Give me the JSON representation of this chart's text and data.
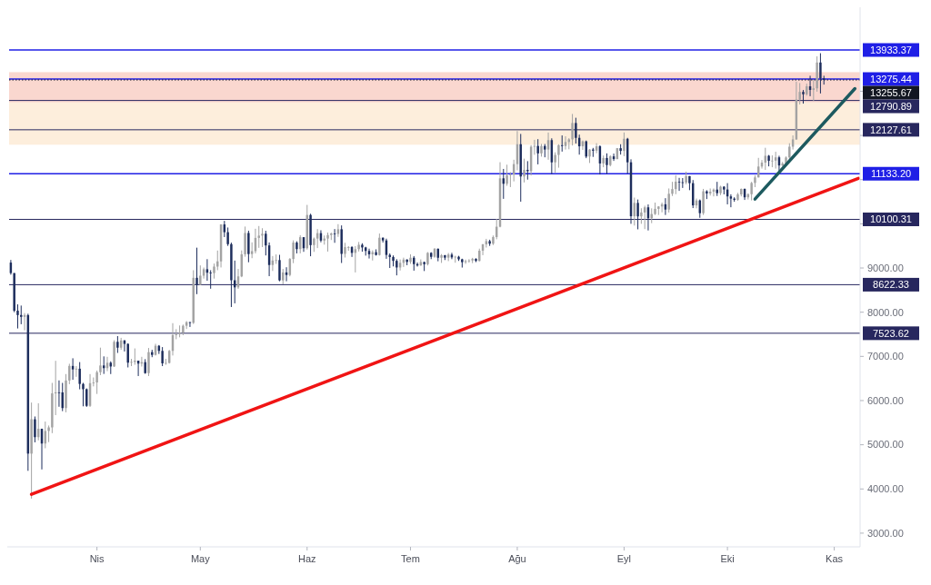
{
  "chart_data": {
    "type": "candlestick",
    "categories": [
      null,
      null,
      null,
      null,
      null,
      null,
      null,
      null,
      null,
      null,
      null,
      null,
      null,
      null,
      null,
      null,
      null,
      null,
      null,
      null,
      null,
      null,
      null,
      null,
      null,
      "Nis",
      null,
      null,
      null,
      null,
      null,
      null,
      null,
      null,
      null,
      null,
      null,
      null,
      null,
      null,
      null,
      null,
      null,
      null,
      null,
      null,
      null,
      null,
      null,
      null,
      null,
      null,
      null,
      null,
      null,
      "May",
      null,
      null,
      null,
      null,
      null,
      null,
      null,
      null,
      null,
      null,
      null,
      null,
      null,
      null,
      null,
      null,
      null,
      null,
      null,
      null,
      null,
      null,
      null,
      null,
      null,
      null,
      null,
      null,
      null,
      null,
      "Haz",
      null,
      null,
      null,
      null,
      null,
      null,
      null,
      null,
      null,
      null,
      null,
      null,
      null,
      null,
      null,
      null,
      null,
      null,
      null,
      null,
      null,
      null,
      null,
      null,
      null,
      null,
      null,
      null,
      null,
      "Tem",
      null,
      null,
      null,
      null,
      null,
      null,
      null,
      null,
      null,
      null,
      null,
      null,
      null,
      null,
      null,
      null,
      null,
      null,
      null,
      null,
      null,
      null,
      null,
      null,
      null,
      null,
      null,
      null,
      null,
      null,
      "Ağu",
      null,
      null,
      null,
      null,
      null,
      null,
      null,
      null,
      null,
      null,
      null,
      null,
      null,
      null,
      null,
      null,
      null,
      null,
      null,
      null,
      null,
      null,
      null,
      null,
      null,
      null,
      null,
      null,
      null,
      null,
      "Eyl",
      null,
      null,
      null,
      null,
      null,
      null,
      null,
      null,
      null,
      null,
      null,
      null,
      null,
      null,
      null,
      null,
      null,
      null,
      null,
      null,
      null,
      null,
      null,
      null,
      null,
      null,
      null,
      null,
      null,
      "Eki",
      null,
      null,
      null,
      null,
      null,
      null,
      null,
      null,
      null,
      null,
      null,
      null,
      null,
      null,
      null,
      null,
      null,
      null,
      null,
      null,
      null,
      null,
      null,
      null,
      null,
      null,
      null,
      null,
      null,
      null,
      "Kas",
      null,
      null,
      null,
      null,
      null,
      null,
      null
    ],
    "ohlc": [
      [
        9122,
        9182,
        8848,
        8885
      ],
      [
        8885,
        8885,
        8000,
        8033
      ],
      [
        8033,
        8177,
        7632,
        7935
      ],
      [
        7936,
        8150,
        7728,
        7895
      ],
      [
        7895,
        7980,
        7590,
        7935
      ],
      [
        7934,
        7966,
        4410,
        4800
      ],
      [
        4800,
        5955,
        3782,
        5578
      ],
      [
        5576,
        5640,
        5055,
        5172
      ],
      [
        5172,
        5940,
        5100,
        5361
      ],
      [
        5361,
        5365,
        4442,
        5028
      ],
      [
        5028,
        5525,
        4921,
        5312
      ],
      [
        5312,
        5436,
        5060,
        5393
      ],
      [
        5393,
        6400,
        5263,
        6163
      ],
      [
        6163,
        6900,
        5670,
        6186
      ],
      [
        6186,
        6456,
        5860,
        6185
      ],
      [
        6185,
        6400,
        5761,
        5830
      ],
      [
        5830,
        6600,
        5734,
        6455
      ],
      [
        6455,
        6833,
        6371,
        6784
      ],
      [
        6784,
        6957,
        6470,
        6706
      ],
      [
        6706,
        6780,
        6538,
        6721
      ],
      [
        6721,
        6871,
        6255,
        6377
      ],
      [
        6377,
        6400,
        5870,
        6258
      ],
      [
        6258,
        6275,
        5857,
        5881
      ],
      [
        5881,
        6599,
        5856,
        6394
      ],
      [
        6394,
        6523,
        6321,
        6410
      ],
      [
        6410,
        6679,
        6150,
        6642
      ],
      [
        6642,
        7198,
        6575,
        6794
      ],
      [
        6794,
        7000,
        6603,
        6734
      ],
      [
        6734,
        6990,
        6666,
        6856
      ],
      [
        6856,
        6888,
        6600,
        6772
      ],
      [
        6772,
        7366,
        6760,
        7329
      ],
      [
        7329,
        7459,
        7078,
        7197
      ],
      [
        7197,
        7420,
        7150,
        7361
      ],
      [
        7361,
        7369,
        7111,
        7283
      ],
      [
        7283,
        7295,
        6750,
        6858
      ],
      [
        6858,
        6944,
        6780,
        6876
      ],
      [
        6876,
        7180,
        6811,
        6903
      ],
      [
        6903,
        6903,
        6555,
        6837
      ],
      [
        6837,
        6990,
        6770,
        6869
      ],
      [
        6869,
        6937,
        6606,
        6621
      ],
      [
        6621,
        7190,
        6555,
        7096
      ],
      [
        7096,
        7149,
        6982,
        7034
      ],
      [
        7034,
        7285,
        7019,
        7240
      ],
      [
        7240,
        7256,
        7055,
        7124
      ],
      [
        7124,
        7210,
        6780,
        6843
      ],
      [
        6843,
        6944,
        6810,
        6852
      ],
      [
        6852,
        7147,
        6838,
        7125
      ],
      [
        7125,
        7752,
        7020,
        7482
      ],
      [
        7482,
        7615,
        7388,
        7505
      ],
      [
        7505,
        7700,
        7432,
        7538
      ],
      [
        7538,
        7720,
        7480,
        7693
      ],
      [
        7693,
        7799,
        7620,
        7774
      ],
      [
        7774,
        7780,
        7666,
        7759
      ],
      [
        7759,
        8950,
        7733,
        8778
      ],
      [
        8778,
        9460,
        8408,
        8620
      ],
      [
        8620,
        9059,
        8612,
        8826
      ],
      [
        8826,
        9011,
        8760,
        8972
      ],
      [
        8972,
        9200,
        8712,
        8894
      ],
      [
        8894,
        8950,
        8531,
        8885
      ],
      [
        8885,
        9100,
        8760,
        9032
      ],
      [
        9032,
        9395,
        8950,
        9150
      ],
      [
        9150,
        9990,
        9012,
        9986
      ],
      [
        9986,
        10067,
        9700,
        9810
      ],
      [
        9810,
        9916,
        9500,
        9540
      ],
      [
        9540,
        9574,
        8117,
        8722
      ],
      [
        8722,
        9168,
        8200,
        8562
      ],
      [
        8562,
        8978,
        8528,
        8810
      ],
      [
        8810,
        9398,
        8792,
        9310
      ],
      [
        9310,
        9938,
        9256,
        9792
      ],
      [
        9792,
        9844,
        9130,
        9316
      ],
      [
        9316,
        9580,
        9222,
        9381
      ],
      [
        9381,
        9888,
        9330,
        9681
      ],
      [
        9681,
        9950,
        9456,
        9733
      ],
      [
        9733,
        9900,
        9474,
        9775
      ],
      [
        9775,
        9842,
        9284,
        9511
      ],
      [
        9511,
        9578,
        8815,
        9068
      ],
      [
        9068,
        9271,
        8933,
        9170
      ],
      [
        9170,
        9307,
        9093,
        9179
      ],
      [
        9179,
        9298,
        8700,
        8720
      ],
      [
        8720,
        8979,
        8632,
        8900
      ],
      [
        8900,
        9017,
        8700,
        8842
      ],
      [
        8842,
        9225,
        8811,
        9204
      ],
      [
        9204,
        9625,
        9110,
        9575
      ],
      [
        9575,
        9605,
        9330,
        9427
      ],
      [
        9427,
        9740,
        9331,
        9697
      ],
      [
        9697,
        9700,
        9366,
        9448
      ],
      [
        9448,
        10428,
        9416,
        10200
      ],
      [
        10200,
        10228,
        9266,
        9518
      ],
      [
        9518,
        9690,
        9365,
        9666
      ],
      [
        9666,
        9881,
        9450,
        9789
      ],
      [
        9789,
        9854,
        9581,
        9621
      ],
      [
        9621,
        9735,
        9528,
        9666
      ],
      [
        9666,
        9802,
        9372,
        9746
      ],
      [
        9746,
        9800,
        9633,
        9782
      ],
      [
        9782,
        9881,
        9570,
        9771
      ],
      [
        9771,
        9992,
        9704,
        9877
      ],
      [
        9877,
        9964,
        9113,
        9320
      ],
      [
        9320,
        9570,
        9237,
        9472
      ],
      [
        9472,
        9494,
        9390,
        9473
      ],
      [
        9473,
        9494,
        9250,
        9342
      ],
      [
        9342,
        9495,
        8900,
        9426
      ],
      [
        9426,
        9589,
        9373,
        9525
      ],
      [
        9525,
        9560,
        9369,
        9465
      ],
      [
        9465,
        9480,
        9280,
        9386
      ],
      [
        9386,
        9438,
        9215,
        9310
      ],
      [
        9310,
        9400,
        9170,
        9358
      ],
      [
        9358,
        9422,
        9281,
        9294
      ],
      [
        9294,
        9780,
        9281,
        9685
      ],
      [
        9685,
        9690,
        9577,
        9624
      ],
      [
        9624,
        9664,
        9208,
        9296
      ],
      [
        9296,
        9330,
        9000,
        9249
      ],
      [
        9249,
        9284,
        9036,
        9162
      ],
      [
        9162,
        9200,
        8833,
        9012
      ],
      [
        9012,
        9194,
        8944,
        9117
      ],
      [
        9117,
        9234,
        9024,
        9190
      ],
      [
        9190,
        9198,
        9063,
        9138
      ],
      [
        9138,
        9309,
        9094,
        9232
      ],
      [
        9232,
        9270,
        8940,
        9088
      ],
      [
        9088,
        9125,
        9032,
        9058
      ],
      [
        9058,
        9195,
        9050,
        9134
      ],
      [
        9134,
        9145,
        8931,
        9086
      ],
      [
        9086,
        9360,
        9058,
        9342
      ],
      [
        9342,
        9357,
        9200,
        9253
      ],
      [
        9253,
        9450,
        9232,
        9436
      ],
      [
        9436,
        9440,
        9152,
        9232
      ],
      [
        9232,
        9315,
        9115,
        9289
      ],
      [
        9289,
        9295,
        9180,
        9234
      ],
      [
        9234,
        9340,
        9156,
        9303
      ],
      [
        9303,
        9344,
        9200,
        9240
      ],
      [
        9240,
        9278,
        9120,
        9255
      ],
      [
        9255,
        9275,
        9160,
        9197
      ],
      [
        9197,
        9210,
        9010,
        9132
      ],
      [
        9132,
        9190,
        9093,
        9155
      ],
      [
        9155,
        9200,
        9120,
        9170
      ],
      [
        9170,
        9230,
        9110,
        9208
      ],
      [
        9208,
        9220,
        9133,
        9160
      ],
      [
        9160,
        9438,
        9148,
        9391
      ],
      [
        9391,
        9544,
        9290,
        9536
      ],
      [
        9536,
        9660,
        9463,
        9608
      ],
      [
        9608,
        9640,
        9500,
        9550
      ],
      [
        9550,
        9736,
        9520,
        9700
      ],
      [
        9700,
        10111,
        9650,
        9934
      ],
      [
        9934,
        11394,
        9920,
        11029
      ],
      [
        11029,
        11242,
        10565,
        10906
      ],
      [
        10906,
        11338,
        10860,
        11100
      ],
      [
        11100,
        11169,
        10831,
        11112
      ],
      [
        11112,
        11450,
        10960,
        11351
      ],
      [
        11351,
        12100,
        11210,
        11801
      ],
      [
        11801,
        12034,
        10500,
        11071
      ],
      [
        11071,
        11474,
        10936,
        11220
      ],
      [
        11220,
        11418,
        11000,
        11191
      ],
      [
        11191,
        11780,
        11093,
        11744
      ],
      [
        11744,
        11900,
        11562,
        11762
      ],
      [
        11762,
        11915,
        11345,
        11594
      ],
      [
        11594,
        11808,
        11520,
        11761
      ],
      [
        11761,
        11806,
        11505,
        11681
      ],
      [
        11681,
        12065,
        11450,
        11893
      ],
      [
        11893,
        11935,
        11125,
        11391
      ],
      [
        11391,
        11618,
        11150,
        11559
      ],
      [
        11559,
        11800,
        11270,
        11779
      ],
      [
        11779,
        12000,
        11634,
        11760
      ],
      [
        11760,
        11980,
        11680,
        11852
      ],
      [
        11852,
        11938,
        11686,
        11911
      ],
      [
        11911,
        12486,
        11772,
        12281
      ],
      [
        12281,
        12400,
        11817,
        11945
      ],
      [
        11945,
        12018,
        11565,
        11754
      ],
      [
        11754,
        11886,
        11672,
        11866
      ],
      [
        11866,
        11885,
        11485,
        11522
      ],
      [
        11522,
        11689,
        11376,
        11681
      ],
      [
        11681,
        11718,
        11514,
        11655
      ],
      [
        11655,
        11825,
        11596,
        11754
      ],
      [
        11754,
        11776,
        11115,
        11366
      ],
      [
        11366,
        11545,
        11280,
        11489
      ],
      [
        11489,
        11594,
        11130,
        11330
      ],
      [
        11330,
        11550,
        11300,
        11526
      ],
      [
        11526,
        11589,
        11423,
        11465
      ],
      [
        11465,
        11715,
        11461,
        11711
      ],
      [
        11711,
        11800,
        11566,
        11650
      ],
      [
        11650,
        12067,
        11530,
        11924
      ],
      [
        11924,
        11945,
        11137,
        11392
      ],
      [
        11392,
        11460,
        10000,
        10171
      ],
      [
        10171,
        10593,
        9960,
        10473
      ],
      [
        10473,
        10550,
        9875,
        10168
      ],
      [
        10168,
        10352,
        10000,
        10256
      ],
      [
        10256,
        10410,
        9880,
        10373
      ],
      [
        10373,
        10438,
        9850,
        10127
      ],
      [
        10127,
        10350,
        10015,
        10221
      ],
      [
        10221,
        10480,
        10200,
        10338
      ],
      [
        10338,
        10400,
        10200,
        10392
      ],
      [
        10392,
        10480,
        10260,
        10442
      ],
      [
        10442,
        10580,
        10200,
        10323
      ],
      [
        10323,
        10800,
        10255,
        10680
      ],
      [
        10680,
        10950,
        10630,
        10786
      ],
      [
        10786,
        11100,
        10670,
        10954
      ],
      [
        10954,
        11040,
        10745,
        10940
      ],
      [
        10940,
        11035,
        10812,
        10933
      ],
      [
        10933,
        11180,
        10893,
        11080
      ],
      [
        11080,
        11080,
        10761,
        10920
      ],
      [
        10920,
        10990,
        10356,
        10417
      ],
      [
        10417,
        10572,
        10350,
        10529
      ],
      [
        10529,
        10550,
        10136,
        10241
      ],
      [
        10241,
        10790,
        10200,
        10736
      ],
      [
        10736,
        10760,
        10560,
        10686
      ],
      [
        10686,
        10800,
        10640,
        10728
      ],
      [
        10728,
        10800,
        10620,
        10774
      ],
      [
        10774,
        10950,
        10630,
        10694
      ],
      [
        10694,
        10860,
        10650,
        10840
      ],
      [
        10840,
        10850,
        10666,
        10776
      ],
      [
        10776,
        10920,
        10440,
        10620
      ],
      [
        10620,
        10667,
        10375,
        10570
      ],
      [
        10570,
        10600,
        10500,
        10542
      ],
      [
        10542,
        10700,
        10520,
        10666
      ],
      [
        10666,
        10800,
        10620,
        10789
      ],
      [
        10789,
        10800,
        10540,
        10600
      ],
      [
        10600,
        10690,
        10550,
        10670
      ],
      [
        10670,
        10950,
        10530,
        10924
      ],
      [
        10924,
        11100,
        10830,
        11050
      ],
      [
        11050,
        11492,
        11050,
        11296
      ],
      [
        11296,
        11443,
        11250,
        11384
      ],
      [
        11384,
        11720,
        11220,
        11540
      ],
      [
        11540,
        11557,
        11300,
        11425
      ],
      [
        11425,
        11548,
        11280,
        11430
      ],
      [
        11430,
        11630,
        11250,
        11504
      ],
      [
        11504,
        11540,
        11200,
        11320
      ],
      [
        11320,
        11400,
        11300,
        11365
      ],
      [
        11365,
        11525,
        11340,
        11501
      ],
      [
        11501,
        11823,
        11412,
        11745
      ],
      [
        11745,
        12000,
        11680,
        11910
      ],
      [
        11910,
        13217,
        11900,
        12811
      ],
      [
        12811,
        13185,
        12700,
        12985
      ],
      [
        12985,
        13028,
        12720,
        12931
      ],
      [
        12931,
        13170,
        12900,
        13111
      ],
      [
        13111,
        13350,
        12888,
        13030
      ],
      [
        13030,
        13250,
        12780,
        13066
      ],
      [
        13066,
        13789,
        12990,
        13650
      ],
      [
        13650,
        13860,
        12950,
        13290
      ],
      [
        13290,
        13350,
        13150,
        13255
      ],
      null,
      null,
      null,
      null,
      null,
      null,
      null,
      null,
      null,
      null
    ],
    "colors": [
      "#1d2d5c",
      "#1d2d5c",
      "#1d2d5c",
      "#1d2d5c",
      "#a3a3a3",
      "#1d2d5c",
      "#a3a3a3",
      "#1d2d5c",
      "#a3a3a3",
      "#1d2d5c",
      "#a3a3a3",
      "#a3a3a3",
      "#a3a3a3",
      "#a3a3a3",
      "#1d2d5c",
      "#1d2d5c",
      "#a3a3a3",
      "#a3a3a3",
      "#1d2d5c",
      "#a3a3a3",
      "#1d2d5c",
      "#1d2d5c",
      "#1d2d5c",
      "#a3a3a3",
      "#a3a3a3",
      "#a3a3a3",
      "#a3a3a3",
      "#1d2d5c",
      "#a3a3a3",
      "#1d2d5c",
      "#a3a3a3",
      "#1d2d5c",
      "#a3a3a3",
      "#1d2d5c",
      "#1d2d5c",
      "#a3a3a3",
      "#a3a3a3",
      "#1d2d5c",
      "#a3a3a3",
      "#1d2d5c",
      "#a3a3a3",
      "#1d2d5c",
      "#a3a3a3",
      "#1d2d5c",
      "#1d2d5c",
      "#a3a3a3",
      "#a3a3a3",
      "#a3a3a3",
      "#a3a3a3",
      "#a3a3a3",
      "#a3a3a3",
      "#a3a3a3",
      "#1d2d5c",
      "#a3a3a3",
      "#1d2d5c",
      "#a3a3a3",
      "#a3a3a3",
      "#1d2d5c",
      "#1d2d5c",
      "#a3a3a3",
      "#a3a3a3",
      "#a3a3a3",
      "#1d2d5c",
      "#1d2d5c",
      "#1d2d5c",
      "#1d2d5c",
      "#a3a3a3",
      "#a3a3a3",
      "#a3a3a3",
      "#1d2d5c",
      "#a3a3a3",
      "#a3a3a3",
      "#a3a3a3",
      "#a3a3a3",
      "#1d2d5c",
      "#1d2d5c",
      "#a3a3a3",
      "#a3a3a3",
      "#1d2d5c",
      "#a3a3a3",
      "#1d2d5c",
      "#a3a3a3",
      "#a3a3a3",
      "#1d2d5c",
      "#a3a3a3",
      "#1d2d5c",
      "#a3a3a3",
      "#1d2d5c",
      "#a3a3a3",
      "#a3a3a3",
      "#1d2d5c",
      "#a3a3a3",
      "#a3a3a3",
      "#a3a3a3",
      "#1d2d5c",
      "#a3a3a3",
      "#1d2d5c",
      "#a3a3a3",
      "#a3a3a3",
      "#1d2d5c",
      "#a3a3a3",
      "#a3a3a3",
      "#1d2d5c",
      "#1d2d5c",
      "#1d2d5c",
      "#a3a3a3",
      "#1d2d5c",
      "#a3a3a3",
      "#1d2d5c",
      "#1d2d5c",
      "#1d2d5c",
      "#1d2d5c",
      "#1d2d5c",
      "#a3a3a3",
      "#a3a3a3",
      "#1d2d5c",
      "#a3a3a3",
      "#1d2d5c",
      "#1d2d5c",
      "#a3a3a3",
      "#1d2d5c",
      "#a3a3a3",
      "#1d2d5c",
      "#a3a3a3",
      "#1d2d5c",
      "#a3a3a3",
      "#1d2d5c",
      "#a3a3a3",
      "#1d2d5c",
      "#a3a3a3",
      "#1d2d5c",
      "#1d2d5c",
      "#a3a3a3",
      "#a3a3a3",
      "#a3a3a3",
      "#1d2d5c",
      "#a3a3a3",
      "#a3a3a3",
      "#a3a3a3",
      "#1d2d5c",
      "#a3a3a3",
      "#a3a3a3",
      "#a3a3a3",
      "#1d2d5c",
      "#a3a3a3",
      "#a3a3a3",
      "#a3a3a3",
      "#a3a3a3",
      "#1d2d5c",
      "#a3a3a3",
      "#1d2d5c",
      "#a3a3a3",
      "#a3a3a3",
      "#1d2d5c",
      "#a3a3a3",
      "#1d2d5c",
      "#a3a3a3",
      "#1d2d5c",
      "#a3a3a3",
      "#a3a3a3",
      "#1d2d5c",
      "#a3a3a3",
      "#a3a3a3",
      "#a3a3a3",
      "#1d2d5c",
      "#1d2d5c",
      "#a3a3a3",
      "#1d2d5c",
      "#a3a3a3",
      "#1d2d5c",
      "#a3a3a3",
      "#1d2d5c",
      "#a3a3a3",
      "#1d2d5c",
      "#a3a3a3",
      "#1d2d5c",
      "#a3a3a3",
      "#1d2d5c",
      "#a3a3a3",
      "#1d2d5c",
      "#1d2d5c",
      "#a3a3a3",
      "#1d2d5c",
      "#a3a3a3",
      "#a3a3a3",
      "#1d2d5c",
      "#a3a3a3",
      "#a3a3a3",
      "#a3a3a3",
      "#a3a3a3",
      "#1d2d5c",
      "#a3a3a3",
      "#a3a3a3",
      "#a3a3a3",
      "#1d2d5c",
      "#1d2d5c",
      "#a3a3a3",
      "#1d2d5c",
      "#1d2d5c",
      "#a3a3a3",
      "#1d2d5c",
      "#a3a3a3",
      "#1d2d5c",
      "#a3a3a3",
      "#a3a3a3",
      "#1d2d5c",
      "#a3a3a3",
      "#1d2d5c",
      "#1d2d5c",
      "#1d2d5c",
      "#1d2d5c",
      "#a3a3a3",
      "#a3a3a3",
      "#1d2d5c",
      "#a3a3a3",
      "#a3a3a3",
      "#a3a3a3",
      "#a3a3a3",
      "#a3a3a3",
      "#a3a3a3",
      "#1d2d5c",
      "#a3a3a3",
      "#a3a3a3",
      "#1d2d5c",
      "#a3a3a3",
      "#a3a3a3",
      "#a3a3a3",
      "#a3a3a3",
      "#a3a3a3",
      "#a3a3a3",
      "#1d2d5c",
      "#a3a3a3",
      "#1d2d5c",
      "#a3a3a3",
      "#a3a3a3",
      "#1d2d5c",
      "#1d2d5c",
      null,
      null,
      null,
      null,
      null,
      null,
      null,
      null,
      null,
      null
    ],
    "series": [
      {
        "type": "line",
        "color": "#f01414",
        "values": [
          null,
          null,
          null,
          null,
          null,
          null,
          3880,
          null,
          null,
          null,
          null,
          null,
          null,
          null,
          null,
          null,
          null,
          null,
          null,
          null,
          null,
          null,
          null,
          null,
          null,
          null,
          null,
          null,
          null,
          null,
          null,
          null,
          null,
          null,
          null,
          null,
          null,
          null,
          null,
          null,
          null,
          null,
          null,
          null,
          null,
          null,
          null,
          null,
          null,
          null,
          null,
          null,
          null,
          null,
          null,
          null,
          null,
          null,
          null,
          null,
          null,
          null,
          null,
          null,
          null,
          null,
          null,
          null,
          null,
          null,
          null,
          null,
          null,
          null,
          null,
          null,
          null,
          null,
          null,
          null,
          null,
          null,
          null,
          null,
          null,
          null,
          null,
          null,
          null,
          null,
          null,
          null,
          null,
          null,
          null,
          null,
          null,
          null,
          null,
          null,
          null,
          null,
          null,
          null,
          null,
          null,
          null,
          null,
          null,
          null,
          null,
          null,
          null,
          null,
          null,
          null,
          null,
          null,
          null,
          null,
          null,
          null,
          null,
          null,
          null,
          null,
          null,
          null,
          null,
          null,
          null,
          null,
          null,
          null,
          null,
          null,
          null,
          null,
          null,
          null,
          null,
          null,
          null,
          null,
          null,
          null,
          null,
          null,
          null,
          null,
          null,
          null,
          null,
          null,
          null,
          null,
          null,
          null,
          null,
          null,
          null,
          null,
          null,
          null,
          null,
          null,
          null,
          null,
          null,
          null,
          null,
          null,
          null,
          null,
          null,
          null,
          null,
          null,
          null,
          null,
          null,
          null,
          null,
          null,
          null,
          null,
          null,
          null,
          null,
          null,
          null,
          null,
          null,
          null,
          null,
          null,
          null,
          null,
          null,
          null,
          null,
          null,
          null,
          null,
          null,
          null,
          null,
          null,
          null,
          null,
          null,
          null,
          null,
          null,
          null,
          null,
          null,
          null,
          null,
          null,
          null,
          null,
          null,
          null,
          null,
          null,
          null,
          null,
          null,
          null,
          null,
          null,
          null,
          null,
          null,
          null,
          null,
          null,
          null,
          null,
          null,
          null,
          null,
          null,
          null,
          null,
          11030
        ]
      },
      {
        "type": "line",
        "color": "#1d5a5f",
        "values": [
          null,
          null,
          null,
          null,
          null,
          null,
          null,
          null,
          null,
          null,
          null,
          null,
          null,
          null,
          null,
          null,
          null,
          null,
          null,
          null,
          null,
          null,
          null,
          null,
          null,
          null,
          null,
          null,
          null,
          null,
          null,
          null,
          null,
          null,
          null,
          null,
          null,
          null,
          null,
          null,
          null,
          null,
          null,
          null,
          null,
          null,
          null,
          null,
          null,
          null,
          null,
          null,
          null,
          null,
          null,
          null,
          null,
          null,
          null,
          null,
          null,
          null,
          null,
          null,
          null,
          null,
          null,
          null,
          null,
          null,
          null,
          null,
          null,
          null,
          null,
          null,
          null,
          null,
          null,
          null,
          null,
          null,
          null,
          null,
          null,
          null,
          null,
          null,
          null,
          null,
          null,
          null,
          null,
          null,
          null,
          null,
          null,
          null,
          null,
          null,
          null,
          null,
          null,
          null,
          null,
          null,
          null,
          null,
          null,
          null,
          null,
          null,
          null,
          null,
          null,
          null,
          null,
          null,
          null,
          null,
          null,
          null,
          null,
          null,
          null,
          null,
          null,
          null,
          null,
          null,
          null,
          null,
          null,
          null,
          null,
          null,
          null,
          null,
          null,
          null,
          null,
          null,
          null,
          null,
          null,
          null,
          null,
          null,
          null,
          null,
          null,
          null,
          null,
          null,
          null,
          null,
          null,
          null,
          null,
          null,
          null,
          null,
          null,
          null,
          null,
          null,
          null,
          null,
          null,
          null,
          null,
          null,
          null,
          null,
          null,
          null,
          null,
          null,
          null,
          null,
          null,
          null,
          null,
          null,
          null,
          null,
          null,
          null,
          null,
          null,
          null,
          null,
          null,
          null,
          null,
          null,
          null,
          null,
          null,
          null,
          null,
          null,
          null,
          null,
          null,
          null,
          null,
          null,
          null,
          null,
          null,
          null,
          null,
          null,
          null,
          null,
          10560,
          null,
          null,
          null,
          null,
          null,
          null,
          null,
          null,
          null,
          null,
          null,
          null,
          null,
          null,
          null,
          null,
          null,
          null,
          null,
          null,
          null,
          null,
          null,
          null,
          null,
          null,
          null,
          null,
          13060,
          null
        ]
      }
    ],
    "ylim": [
      2690,
      14900
    ],
    "yticks": [
      {
        "value": 3000,
        "label": "3000.00"
      },
      {
        "value": 4000,
        "label": "4000.00"
      },
      {
        "value": 5000,
        "label": "5000.00"
      },
      {
        "value": 6000,
        "label": "6000.00"
      },
      {
        "value": 7000,
        "label": "7000.00"
      },
      {
        "value": 8000,
        "label": "8000.00"
      },
      {
        "value": 9000,
        "label": "9000.00"
      },
      {
        "value": 10000,
        "label": null
      },
      {
        "value": 11000,
        "label": null
      },
      {
        "value": 12000,
        "label": null
      },
      {
        "value": 13000,
        "label": null
      }
    ],
    "ref_lines": [
      {
        "axis": "y",
        "value": 13933.37,
        "label": "13933.37",
        "color": "#1f1fe6"
      },
      {
        "axis": "y",
        "value": 13275.44,
        "label": "13275.44",
        "color": "#1f1fe6"
      },
      {
        "axis": "y",
        "value": 13255.67,
        "label": "13255.67",
        "color": "#131722",
        "line_style": "dotted"
      },
      {
        "axis": "y",
        "value": 12790.89,
        "label": "12790.89",
        "color": "#27275e"
      },
      {
        "axis": "y",
        "value": 12127.61,
        "label": "12127.61",
        "color": "#27275e"
      },
      {
        "axis": "y",
        "value": 11133.2,
        "label": "11133.20",
        "color": "#1f1fe6"
      },
      {
        "axis": "y",
        "value": 10100.31,
        "label": "10100.31",
        "color": "#27275e"
      },
      {
        "axis": "y",
        "value": 8622.33,
        "label": "8622.33",
        "color": "#27275e"
      },
      {
        "axis": "y",
        "value": 7523.62,
        "label": "7523.62",
        "color": "#27275e"
      }
    ],
    "bands": [
      {
        "axis": "y",
        "from": 11790,
        "to": 13430,
        "color": "#fbe0c0"
      },
      {
        "axis": "y",
        "from": 12750,
        "to": 13430,
        "color": "#f8c4c4"
      }
    ]
  }
}
